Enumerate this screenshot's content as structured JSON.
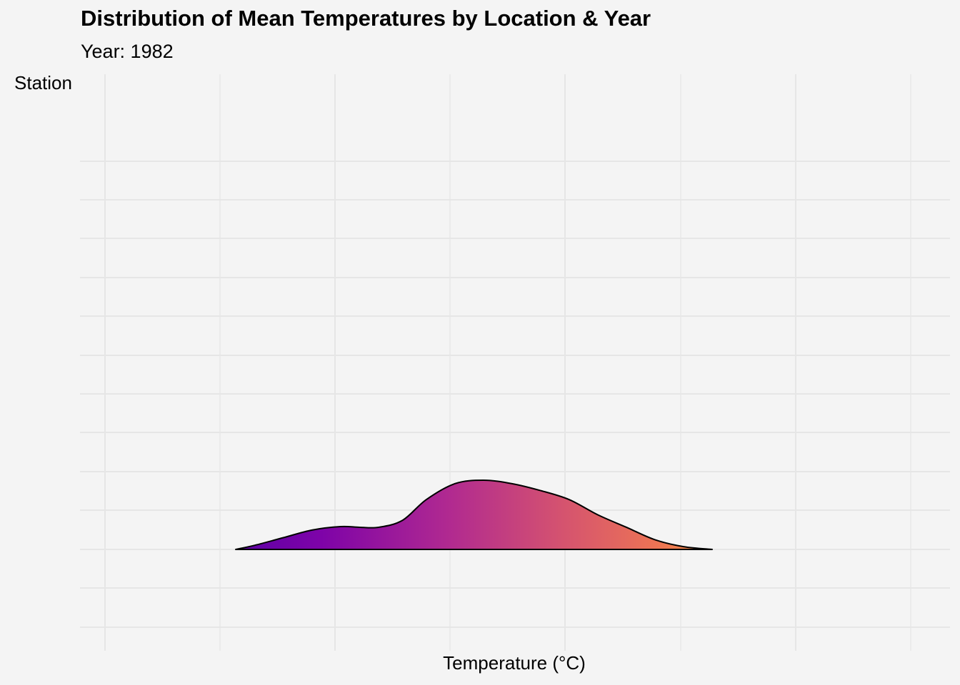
{
  "chart_data": {
    "type": "area",
    "title": "Distribution of Mean Temperatures by Location & Year",
    "subtitle": "Year: 1982",
    "xlabel": "Temperature (°C)",
    "ylabel": "Station",
    "grid": true,
    "fill_gradient": [
      "#6a00a8",
      "#b12a90",
      "#e16462",
      "#fca636"
    ],
    "background": "#f4f4f4",
    "series": [
      {
        "x": [
          0.0,
          0.04,
          0.1,
          0.16,
          0.22,
          0.26,
          0.3,
          0.35,
          0.4,
          0.46,
          0.52,
          0.58,
          0.64,
          0.7,
          0.76,
          0.82,
          0.88,
          0.94,
          1.0
        ],
        "y": [
          0.0,
          0.06,
          0.17,
          0.28,
          0.33,
          0.32,
          0.32,
          0.42,
          0.72,
          0.95,
          1.0,
          0.95,
          0.85,
          0.72,
          0.5,
          0.32,
          0.14,
          0.04,
          0.0
        ]
      }
    ]
  }
}
